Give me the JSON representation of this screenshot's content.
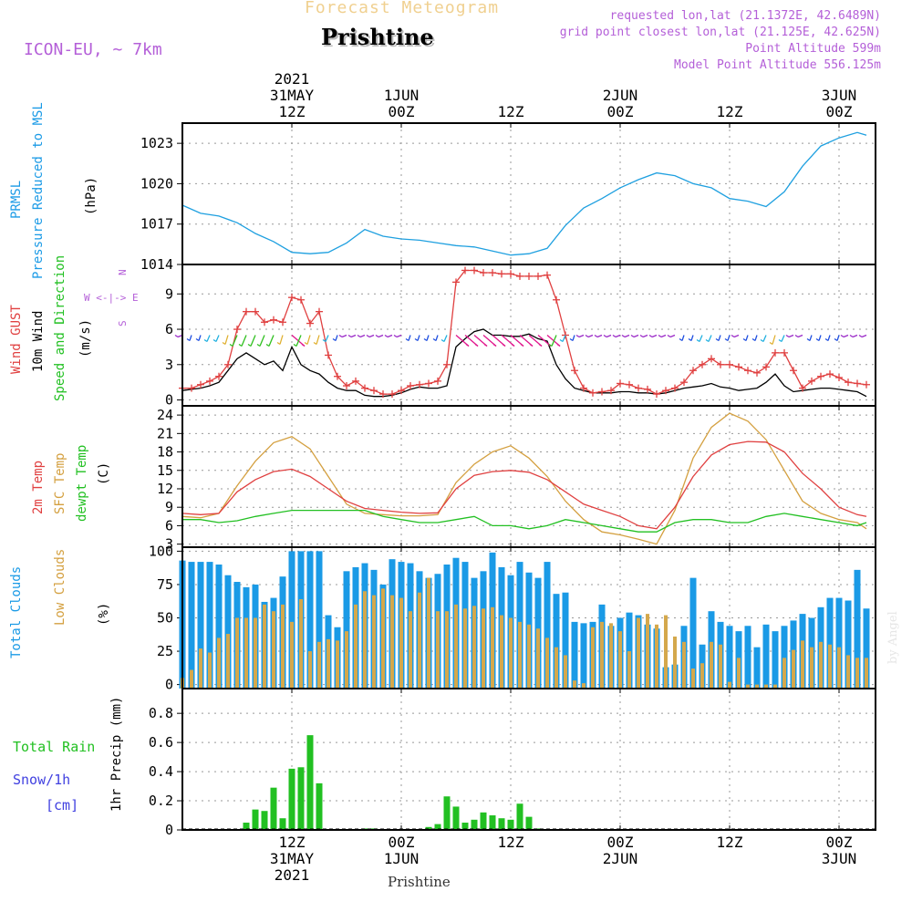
{
  "header": {
    "product": "Forecast Meteogram",
    "location": "Prishtine",
    "model": "ICON-EU, ~ 7km",
    "requested": "requested lon,lat (21.1372E, 42.6489N)",
    "gridpoint": "grid point closest lon,lat (21.125E, 42.625N)",
    "point_alt": "Point Altitude 599m",
    "model_alt": "Model Point Altitude 556.125m",
    "footer_location": "Prishtine",
    "watermark": "by Angel"
  },
  "time_axis": {
    "top": [
      {
        "lines": [
          "2021",
          "31MAY",
          "12Z"
        ],
        "t": 12
      },
      {
        "lines": [
          "1JUN",
          "00Z"
        ],
        "t": 24
      },
      {
        "lines": [
          "12Z"
        ],
        "t": 36
      },
      {
        "lines": [
          "2JUN",
          "00Z"
        ],
        "t": 48
      },
      {
        "lines": [
          "12Z"
        ],
        "t": 60
      },
      {
        "lines": [
          "3JUN",
          "00Z"
        ],
        "t": 72
      }
    ],
    "bottom": [
      {
        "lines": [
          "12Z",
          "31MAY",
          "2021"
        ],
        "t": 12
      },
      {
        "lines": [
          "00Z",
          "1JUN"
        ],
        "t": 24
      },
      {
        "lines": [
          "12Z"
        ],
        "t": 36
      },
      {
        "lines": [
          "00Z",
          "2JUN"
        ],
        "t": 48
      },
      {
        "lines": [
          "12Z"
        ],
        "t": 60
      },
      {
        "lines": [
          "00Z",
          "3JUN"
        ],
        "t": 72
      }
    ]
  },
  "panels": {
    "pressure": {
      "labels": [
        "PRMSL",
        "Pressure Reduced to MSL",
        "(hPa)"
      ]
    },
    "wind": {
      "labels": [
        "Wind GUST",
        "10m Wind",
        "Speed and Direction",
        "(m/s)"
      ],
      "compass": [
        "N",
        "W <-|-> E",
        "S"
      ]
    },
    "temp": {
      "labels": [
        "2m Temp",
        "SFC Temp",
        "dewpt Temp",
        "(C)"
      ]
    },
    "clouds": {
      "labels": [
        "Total Clouds",
        "Low Clouds",
        "(%)"
      ]
    },
    "precip": {
      "labels": [
        "1hr Precip (mm)"
      ],
      "legend": [
        "Total  Rain",
        "Snow/1h",
        "[cm]"
      ]
    }
  },
  "chart_data": [
    {
      "type": "line",
      "title": "PRMSL",
      "ylabel": "(hPa)",
      "ylim": [
        1014,
        1024.5
      ],
      "yticks": [
        1014,
        1017,
        1020,
        1023
      ],
      "x_hours_from_00Z_31MAY": [
        0,
        2,
        4,
        6,
        8,
        10,
        12,
        14,
        16,
        18,
        20,
        22,
        24,
        26,
        28,
        30,
        32,
        34,
        36,
        38,
        40,
        42,
        44,
        46,
        48,
        50,
        52,
        54,
        56,
        58,
        60,
        62,
        64,
        66,
        68,
        70,
        72,
        74,
        75
      ],
      "series": [
        {
          "color": "#1fa0e0",
          "values": [
            1018.4,
            1017.8,
            1017.6,
            1017.1,
            1016.3,
            1015.7,
            1014.9,
            1014.8,
            1014.9,
            1015.6,
            1016.6,
            1016.1,
            1015.9,
            1015.8,
            1015.6,
            1015.4,
            1015.3,
            1015.0,
            1014.7,
            1014.8,
            1015.2,
            1016.9,
            1018.2,
            1018.9,
            1019.7,
            1020.3,
            1020.8,
            1020.6,
            1020.0,
            1019.7,
            1018.9,
            1018.7,
            1018.3,
            1019.4,
            1021.3,
            1022.8,
            1023.4,
            1023.8,
            1023.6
          ]
        }
      ]
    },
    {
      "type": "line",
      "title": "Wind",
      "ylabel": "(m/s)",
      "ylim": [
        -0.5,
        11.5
      ],
      "yticks": [
        0,
        3,
        6,
        9
      ],
      "x_hours_from_00Z_31MAY": [
        0,
        1,
        2,
        3,
        4,
        5,
        6,
        7,
        8,
        9,
        10,
        11,
        12,
        13,
        14,
        15,
        16,
        17,
        18,
        19,
        20,
        21,
        22,
        23,
        24,
        25,
        26,
        27,
        28,
        29,
        30,
        31,
        32,
        33,
        34,
        35,
        36,
        37,
        38,
        39,
        40,
        41,
        42,
        43,
        44,
        45,
        46,
        47,
        48,
        49,
        50,
        51,
        52,
        53,
        54,
        55,
        56,
        57,
        58,
        59,
        60,
        61,
        62,
        63,
        64,
        65,
        66,
        67,
        68,
        69,
        70,
        71,
        72,
        73,
        74,
        75
      ],
      "series": [
        {
          "name": "Wind GUST",
          "color": "#e04040",
          "values": [
            1,
            1,
            1.3,
            1.6,
            2,
            3,
            6,
            7.5,
            7.5,
            6.6,
            6.8,
            6.6,
            8.7,
            8.5,
            6.5,
            7.5,
            3.8,
            2,
            1.2,
            1.6,
            1,
            0.8,
            0.5,
            0.5,
            0.8,
            1.2,
            1.3,
            1.4,
            1.6,
            3,
            10,
            11,
            11,
            10.8,
            10.8,
            10.7,
            10.7,
            10.5,
            10.5,
            10.5,
            10.6,
            8.5,
            5.5,
            2.5,
            1,
            0.6,
            0.7,
            0.8,
            1.4,
            1.3,
            1,
            0.9,
            0.5,
            0.8,
            1,
            1.5,
            2.5,
            3,
            3.5,
            3,
            3,
            2.8,
            2.5,
            2.3,
            2.8,
            4,
            4,
            2.5,
            1,
            1.6,
            2,
            2.2,
            1.9,
            1.5,
            1.4,
            1.3
          ]
        },
        {
          "name": "10m Wind",
          "color": "#000000",
          "values": [
            0.8,
            0.9,
            1,
            1.2,
            1.5,
            2.5,
            3.5,
            4,
            3.5,
            3,
            3.3,
            2.5,
            4.5,
            3,
            2.5,
            2.2,
            1.5,
            1,
            0.8,
            0.8,
            0.4,
            0.3,
            0.3,
            0.4,
            0.6,
            0.9,
            1.1,
            1,
            1,
            1.2,
            4.5,
            5.2,
            5.8,
            6,
            5.5,
            5.5,
            5.4,
            5.4,
            5.6,
            5.2,
            5,
            3,
            1.8,
            1,
            0.8,
            0.6,
            0.6,
            0.6,
            0.7,
            0.7,
            0.6,
            0.6,
            0.5,
            0.6,
            0.8,
            1,
            1.1,
            1.2,
            1.4,
            1.1,
            1,
            0.8,
            0.9,
            1,
            1.5,
            2.2,
            1.2,
            0.7,
            0.8,
            0.9,
            1,
            1,
            0.9,
            0.8,
            0.7,
            0.3
          ]
        }
      ]
    },
    {
      "type": "line",
      "title": "Temperature",
      "ylabel": "(C)",
      "ylim": [
        2.5,
        25.5
      ],
      "yticks": [
        3,
        6,
        9,
        12,
        15,
        18,
        21,
        24
      ],
      "x_hours_from_00Z_31MAY": [
        0,
        2,
        4,
        6,
        8,
        10,
        12,
        14,
        16,
        18,
        20,
        22,
        24,
        26,
        28,
        30,
        32,
        34,
        36,
        38,
        40,
        42,
        44,
        46,
        48,
        50,
        52,
        54,
        56,
        58,
        60,
        62,
        64,
        66,
        68,
        70,
        72,
        74,
        75
      ],
      "series": [
        {
          "name": "2m Temp",
          "color": "#e04040",
          "values": [
            8,
            7.8,
            8,
            11.5,
            13.5,
            14.8,
            15.2,
            14,
            12,
            10,
            8.8,
            8.5,
            8.2,
            8,
            8.1,
            12,
            14.2,
            14.8,
            15,
            14.7,
            13.5,
            11.5,
            9.5,
            8.5,
            7.5,
            6,
            5.5,
            9,
            14,
            17.5,
            19.2,
            19.7,
            19.6,
            18,
            14.5,
            12,
            9,
            7.8,
            7.5
          ]
        },
        {
          "name": "SFC Temp",
          "color": "#d4a040",
          "values": [
            7.5,
            7.3,
            8,
            12.5,
            16.5,
            19.5,
            20.5,
            18.5,
            14,
            9.5,
            8,
            7.8,
            7.6,
            7.6,
            7.8,
            13,
            16,
            18,
            19,
            17,
            14,
            10,
            7,
            5,
            4.5,
            3.8,
            3,
            8.5,
            17,
            22,
            24.3,
            23,
            20,
            15,
            10,
            8,
            7,
            6.5,
            5.5
          ]
        },
        {
          "name": "dewpt Temp",
          "color": "#22c022",
          "values": [
            7,
            7,
            6.5,
            6.8,
            7.5,
            8,
            8.5,
            8.5,
            8.5,
            8.5,
            8.5,
            7.5,
            7,
            6.5,
            6.5,
            7,
            7.5,
            6,
            6,
            5.5,
            6,
            7,
            6.5,
            6,
            5.5,
            5,
            5,
            6.5,
            7,
            7,
            6.5,
            6.5,
            7.5,
            8,
            7.5,
            7,
            6.5,
            6,
            6.5
          ]
        }
      ]
    },
    {
      "type": "bar",
      "title": "Clouds",
      "ylabel": "(%)",
      "ylim": [
        -3,
        103
      ],
      "yticks": [
        0,
        25,
        50,
        75,
        100
      ],
      "x_hours_from_00Z_31MAY": [
        0,
        1,
        2,
        3,
        4,
        5,
        6,
        7,
        8,
        9,
        10,
        11,
        12,
        13,
        14,
        15,
        16,
        17,
        18,
        19,
        20,
        21,
        22,
        23,
        24,
        25,
        26,
        27,
        28,
        29,
        30,
        31,
        32,
        33,
        34,
        35,
        36,
        37,
        38,
        39,
        40,
        41,
        42,
        43,
        44,
        45,
        46,
        47,
        48,
        49,
        50,
        51,
        52,
        53,
        54,
        55,
        56,
        57,
        58,
        59,
        60,
        61,
        62,
        63,
        64,
        65,
        66,
        67,
        68,
        69,
        70,
        71,
        72,
        73,
        74,
        75
      ],
      "series": [
        {
          "name": "Total Clouds",
          "color": "#1a9ae6",
          "values": [
            93,
            92,
            92,
            92,
            90,
            82,
            77,
            73,
            75,
            62,
            65,
            81,
            100,
            100,
            100,
            100,
            52,
            43,
            85,
            88,
            91,
            86,
            75,
            94,
            92,
            91,
            85,
            80,
            83,
            90,
            95,
            92,
            80,
            85,
            99,
            88,
            82,
            92,
            84,
            80,
            92,
            68,
            69,
            47,
            46,
            47,
            60,
            44,
            50,
            54,
            52,
            45,
            42,
            13,
            15,
            44,
            80,
            30,
            55,
            47,
            44,
            40,
            44,
            28,
            45,
            40,
            44,
            48,
            53,
            50,
            58,
            65,
            65,
            63,
            86,
            57
          ]
        },
        {
          "name": "Low Clouds",
          "color": "#d4a84c",
          "values": [
            5,
            11,
            27,
            24,
            35,
            38,
            50,
            50,
            50,
            60,
            55,
            60,
            47,
            64,
            25,
            32,
            34,
            33,
            40,
            60,
            70,
            67,
            72,
            67,
            65,
            55,
            69,
            80,
            55,
            55,
            60,
            57,
            59,
            57,
            58,
            52,
            50,
            47,
            45,
            42,
            35,
            28,
            22,
            3,
            1,
            43,
            47,
            46,
            40,
            25,
            50,
            53,
            45,
            52,
            36,
            32,
            12,
            16,
            32,
            30,
            2,
            20,
            0,
            0,
            0,
            0,
            20,
            26,
            33,
            28,
            32,
            30,
            28,
            22,
            20,
            20
          ]
        }
      ]
    },
    {
      "type": "bar",
      "title": "1hr Precip",
      "ylabel": "1hr Precip (mm)",
      "ylim": [
        0,
        0.97
      ],
      "yticks": [
        0,
        0.2,
        0.4,
        0.6,
        0.8
      ],
      "x_hours_from_00Z_31MAY": [
        7,
        8,
        9,
        10,
        11,
        12,
        13,
        14,
        15,
        20,
        21,
        27,
        28,
        29,
        30,
        31,
        32,
        33,
        34,
        35,
        36,
        37,
        38,
        39
      ],
      "series": [
        {
          "name": "Total Rain",
          "color": "#22c022",
          "values": [
            0.05,
            0.14,
            0.13,
            0.29,
            0.08,
            0.42,
            0.43,
            0.65,
            0.32,
            0.01,
            0.01,
            0.02,
            0.04,
            0.23,
            0.16,
            0.05,
            0.07,
            0.12,
            0.1,
            0.08,
            0.07,
            0.18,
            0.09,
            0.01
          ]
        }
      ]
    }
  ]
}
